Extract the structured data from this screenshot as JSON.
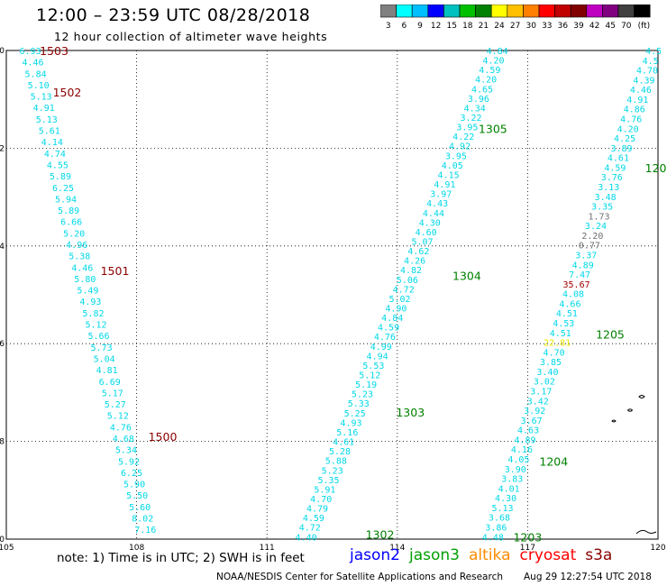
{
  "header": {
    "title": "12:00 – 23:59 UTC 08/28/2018",
    "subtitle": "12 hour collection of altimeter wave heights"
  },
  "legend_scale": {
    "colors": [
      "#808080",
      "#00ffff",
      "#00bfff",
      "#0000ff",
      "#00c0c0",
      "#00c000",
      "#008000",
      "#ffff00",
      "#ffc000",
      "#ff8000",
      "#ff0000",
      "#c00000",
      "#800000",
      "#c000c0",
      "#800080",
      "#404040",
      "#000000"
    ],
    "labels": [
      "3",
      "6",
      "9",
      "12",
      "15",
      "18",
      "21",
      "24",
      "27",
      "30",
      "33",
      "36",
      "39",
      "42",
      "45",
      "70",
      "(ft)"
    ]
  },
  "map": {
    "lon_ticks": [
      "105",
      "108",
      "111",
      "114",
      "117",
      "120"
    ],
    "lat_ticks": [
      "-10",
      "-12",
      "-14",
      "-16",
      "-18",
      "-20"
    ],
    "pass_labels": [
      {
        "text": "1503",
        "color": "#8b0000",
        "lon": 106.1,
        "lat": -10.0
      },
      {
        "text": "1502",
        "color": "#8b0000",
        "lon": 106.4,
        "lat": -10.85
      },
      {
        "text": "1501",
        "color": "#8b0000",
        "lon": 107.5,
        "lat": -14.5
      },
      {
        "text": "1500",
        "color": "#8b0000",
        "lon": 108.6,
        "lat": -17.9
      },
      {
        "text": "1305",
        "color": "#008000",
        "lon": 116.2,
        "lat": -11.6
      },
      {
        "text": "1304",
        "color": "#008000",
        "lon": 115.6,
        "lat": -14.6
      },
      {
        "text": "1303",
        "color": "#008000",
        "lon": 114.3,
        "lat": -17.4
      },
      {
        "text": "1302",
        "color": "#008000",
        "lon": 113.6,
        "lat": -19.9
      },
      {
        "text": "1205",
        "color": "#008000",
        "lon": 118.9,
        "lat": -15.8
      },
      {
        "text": "1204",
        "color": "#008000",
        "lon": 117.6,
        "lat": -18.4
      },
      {
        "text": "1203",
        "color": "#008000",
        "lon": 117.0,
        "lat": -19.95
      },
      {
        "text": "120",
        "color": "#008000",
        "lon": 119.95,
        "lat": -12.4
      }
    ],
    "tracks": [
      {
        "name": "1503",
        "lon0": 105.55,
        "lat0": -10.0,
        "lon1": 108.2,
        "lat1": -19.8,
        "values": [
          "6.93",
          "4.46",
          "5.84",
          "5.10",
          "5.13",
          "4.91",
          "5.13",
          "5.61",
          "4.14",
          "4.74",
          "4.55",
          "5.89",
          "6.25",
          "5.94",
          "5.89",
          "6.66",
          "5.20",
          "4.96",
          "5.38",
          "4.46",
          "5.80",
          "5.49",
          "4.93",
          "5.82",
          "5.12",
          "5.66",
          "5.73",
          "5.04",
          "4.81",
          "6.69",
          "5.17",
          "5.27",
          "5.12",
          "4.76",
          "4.68",
          "5.34",
          "5.92",
          "6.25",
          "5.90",
          "5.50",
          "5.60",
          "8.02",
          "7.16"
        ]
      },
      {
        "name": "1305",
        "lon0": 116.3,
        "lat0": -10.0,
        "lon1": 111.9,
        "lat1": -19.95,
        "values": [
          "4.84",
          "4.20",
          "4.59",
          "4.20",
          "4.65",
          "3.96",
          "4.34",
          "3.22",
          "3.95",
          "4.22",
          "4.92",
          "3.95",
          "4.05",
          "4.15",
          "4.91",
          "3.97",
          "4.43",
          "4.44",
          "4.30",
          "4.60",
          "5.07",
          "4.62",
          "4.26",
          "4.82",
          "5.06",
          "4.72",
          "5.02",
          "4.90",
          "4.84",
          "4.59",
          "4.76",
          "4.99",
          "4.94",
          "5.53",
          "5.12",
          "5.19",
          "5.23",
          "5.33",
          "5.25",
          "4.93",
          "5.16",
          "4.61",
          "5.28",
          "5.88",
          "5.23",
          "5.35",
          "5.91",
          "4.70",
          "4.79",
          "4.59",
          "4.72",
          "4.40"
        ]
      },
      {
        "name": "1205",
        "lon0": 119.9,
        "lat0": -10.0,
        "lon1": 116.2,
        "lat1": -19.95,
        "values": [
          "4.5",
          "4.5",
          "4.70",
          "4.39",
          "4.46",
          "4.91",
          "4.86",
          "4.76",
          "4.20",
          "4.25",
          "3.89",
          "4.61",
          "4.59",
          "3.76",
          "3.13",
          "3.48",
          "3.35",
          "1.73",
          "3.24",
          "2.20",
          "0.77",
          "3.37",
          "4.89",
          "7.47",
          "35.67",
          "4.08",
          "4.66",
          "4.51",
          "4.53",
          "4.51",
          "22.81",
          "4.70",
          "3.85",
          "3.40",
          "3.02",
          "3.17",
          "3.42",
          "3.92",
          "3.67",
          "4.63",
          "4.89",
          "4.16",
          "4.05",
          "3.90",
          "3.83",
          "4.01",
          "4.30",
          "5.13",
          "3.68",
          "3.86",
          "4.48"
        ]
      }
    ]
  },
  "footer": {
    "note": "note:  1) Time is in UTC;  2) SWH is in feet",
    "satellites": [
      {
        "name": "jason2",
        "color": "#0000ff"
      },
      {
        "name": "jason3",
        "color": "#00a000"
      },
      {
        "name": "altika",
        "color": "#ff8c00"
      },
      {
        "name": "cryosat",
        "color": "#ff0000"
      },
      {
        "name": "s3a",
        "color": "#8b0000"
      }
    ],
    "credit": "NOAA/NESDIS Center for Satellite Applications and Research",
    "timestamp": "Aug 29 12:27:54 UTC 2018"
  }
}
